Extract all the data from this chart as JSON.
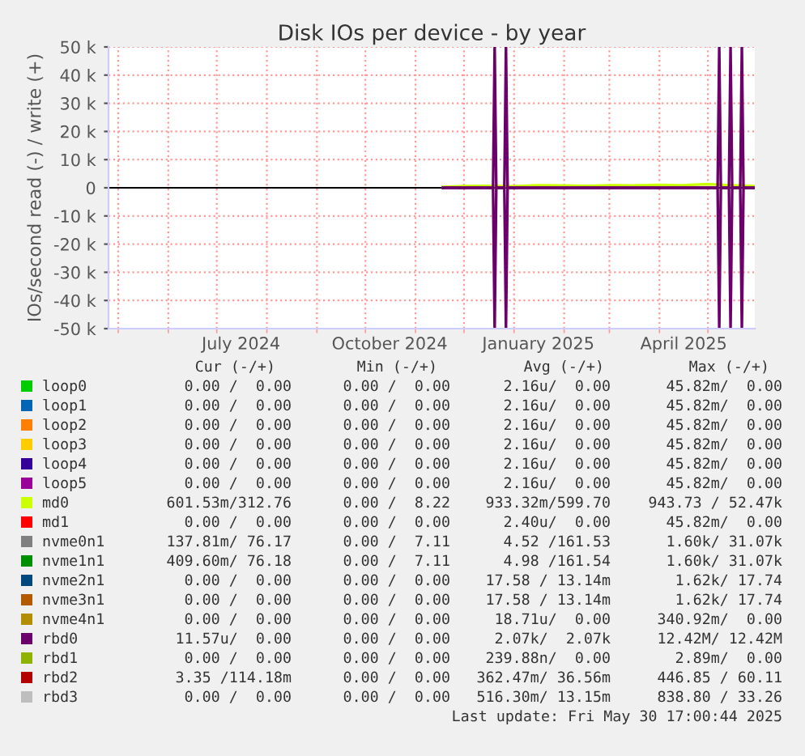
{
  "chart_data": {
    "type": "line",
    "title": "Disk IOs per device - by year",
    "ylabel": "IOs/second read (-) / write (+)",
    "xlim": [
      "2024-04-25",
      "2025-05-30"
    ],
    "xticks": [
      {
        "value": "2024-05-01",
        "label": null
      },
      {
        "value": "2024-06-01",
        "label": null
      },
      {
        "value": "2024-07-01",
        "label": null
      },
      {
        "value": "2024-08-01",
        "label": null
      },
      {
        "value": "2024-09-01",
        "label": null
      },
      {
        "value": "2024-10-01",
        "label": null
      },
      {
        "value": "2024-11-01",
        "label": null
      },
      {
        "value": "2024-12-01",
        "label": null
      },
      {
        "value": "2025-01-01",
        "label": null
      },
      {
        "value": "2025-02-01",
        "label": null
      },
      {
        "value": "2025-03-01",
        "label": null
      },
      {
        "value": "2025-04-01",
        "label": null
      },
      {
        "value": "2025-05-01",
        "label": null
      },
      {
        "value": "2024-07-16",
        "label": "July 2024"
      },
      {
        "value": "2024-10-16",
        "label": "October 2024"
      },
      {
        "value": "2025-01-16",
        "label": "January 2025"
      },
      {
        "value": "2025-04-16",
        "label": "April 2025"
      }
    ],
    "ylim": [
      -50000,
      50000
    ],
    "yticks": [
      {
        "value": -50000,
        "label": "-50 k"
      },
      {
        "value": -40000,
        "label": "-40 k"
      },
      {
        "value": -30000,
        "label": "-30 k"
      },
      {
        "value": -20000,
        "label": "-20 k"
      },
      {
        "value": -10000,
        "label": "-10 k"
      },
      0,
      {
        "value": 10000,
        "label": "10 k"
      },
      {
        "value": 20000,
        "label": "20 k"
      },
      {
        "value": 30000,
        "label": "30 k"
      },
      {
        "value": 40000,
        "label": "40 k"
      },
      {
        "value": 50000,
        "label": "50 k"
      }
    ],
    "grid": true,
    "legend": "bottom",
    "series": [
      {
        "name": "loop0",
        "color": "#00cc00"
      },
      {
        "name": "loop1",
        "color": "#0066b3"
      },
      {
        "name": "loop2",
        "color": "#ff8000"
      },
      {
        "name": "loop3",
        "color": "#ffcc00"
      },
      {
        "name": "loop4",
        "color": "#330099"
      },
      {
        "name": "loop5",
        "color": "#990099"
      },
      {
        "name": "md0",
        "color": "#ccff00",
        "x": [
          "2024-11-18",
          "2024-12-01",
          "2024-12-15",
          "2025-01-01",
          "2025-01-15",
          "2025-02-01",
          "2025-02-15",
          "2025-03-01",
          "2025-03-15",
          "2025-04-01",
          "2025-04-15",
          "2025-05-01",
          "2025-05-15",
          "2025-05-30"
        ],
        "values": [
          300,
          600,
          700,
          500,
          900,
          800,
          700,
          900,
          800,
          1000,
          900,
          1300,
          900,
          600
        ]
      },
      {
        "name": "md1",
        "color": "#ff0000"
      },
      {
        "name": "nvme0n1",
        "color": "#808080"
      },
      {
        "name": "nvme1n1",
        "color": "#008f00"
      },
      {
        "name": "nvme2n1",
        "color": "#00487d"
      },
      {
        "name": "nvme3n1",
        "color": "#b35a00"
      },
      {
        "name": "nvme4n1",
        "color": "#b38f00"
      },
      {
        "name": "rbd0",
        "color": "#6b006b",
        "x": [
          "2024-11-18",
          "2024-12-19",
          "2024-12-20",
          "2024-12-21",
          "2024-12-26",
          "2024-12-27",
          "2024-12-28",
          "2025-05-07",
          "2025-05-08",
          "2025-05-09",
          "2025-05-14",
          "2025-05-15",
          "2025-05-16",
          "2025-05-21",
          "2025-05-22",
          "2025-05-23",
          "2025-05-30"
        ],
        "values": [
          0,
          0,
          50000,
          0,
          0,
          50000,
          0,
          0,
          50000,
          0,
          0,
          50000,
          0,
          0,
          50000,
          0,
          0
        ]
      },
      {
        "name": "rbd1",
        "color": "#8fb300"
      },
      {
        "name": "rbd2",
        "color": "#b30000"
      },
      {
        "name": "rbd3",
        "color": "#bebebe"
      },
      {
        "color": "#6b006b",
        "x": [
          "2024-11-18",
          "2024-12-19",
          "2024-12-20",
          "2024-12-21",
          "2024-12-26",
          "2024-12-27",
          "2024-12-28",
          "2025-05-07",
          "2025-05-08",
          "2025-05-09",
          "2025-05-14",
          "2025-05-15",
          "2025-05-16",
          "2025-05-21",
          "2025-05-22",
          "2025-05-23",
          "2025-05-30"
        ],
        "values": [
          0,
          0,
          -50000,
          0,
          0,
          -50000,
          0,
          0,
          -50000,
          0,
          0,
          -50000,
          0,
          0,
          -50000,
          0,
          0
        ]
      }
    ],
    "annotations": [
      "Cur (-/+)",
      "Min (-/+)",
      "Avg (-/+)",
      "Max (-/+)",
      "0.00 /  0.00",
      "0.00 /  0.00",
      "2.16u/  0.00",
      "45.82m/  0.00",
      "0.00 /  0.00",
      "0.00 /  0.00",
      "2.16u/  0.00",
      "45.82m/  0.00",
      "0.00 /  0.00",
      "0.00 /  0.00",
      "2.16u/  0.00",
      "45.82m/  0.00",
      "0.00 /  0.00",
      "0.00 /  0.00",
      "2.16u/  0.00",
      "45.82m/  0.00",
      "0.00 /  0.00",
      "0.00 /  0.00",
      "2.16u/  0.00",
      "45.82m/  0.00",
      "0.00 /  0.00",
      "0.00 /  0.00",
      "2.16u/  0.00",
      "45.82m/  0.00",
      "601.53m/312.76",
      "0.00 /  8.22",
      "933.32m/599.70",
      "943.73 / 52.47k",
      "0.00 /  0.00",
      "0.00 /  0.00",
      "2.40u/  0.00",
      "45.82m/  0.00",
      "137.81m/ 76.17",
      "0.00 /  7.11",
      "4.52 /161.53",
      "1.60k/ 31.07k",
      "409.60m/ 76.18",
      "0.00 /  7.11",
      "4.98 /161.54",
      "1.60k/ 31.07k",
      "0.00 /  0.00",
      "0.00 /  0.00",
      "17.58 / 13.14m",
      "1.62k/ 17.74",
      "0.00 /  0.00",
      "0.00 /  0.00",
      "17.58 / 13.14m",
      "1.62k/ 17.74",
      "0.00 /  0.00",
      "0.00 /  0.00",
      "18.71u/  0.00",
      "340.92m/  0.00",
      "11.57u/  0.00",
      "0.00 /  0.00",
      "2.07k/  2.07k",
      "12.42M/ 12.42M",
      "0.00 /  0.00",
      "0.00 /  0.00",
      "239.88n/  0.00",
      "2.89m/  0.00",
      "3.35 /114.18m",
      "0.00 /  0.00",
      "362.47m/ 36.56m",
      "446.85 / 60.11",
      "0.00 /  0.00",
      "0.00 /  0.00",
      "516.30m/ 13.15m",
      "838.80 / 33.26",
      "Last update: Fri May 30 17:00:44 2025"
    ]
  }
}
